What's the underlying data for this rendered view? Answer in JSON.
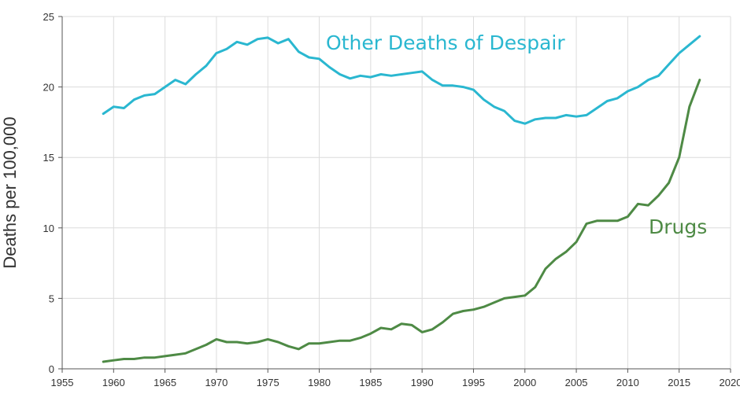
{
  "chart_data": {
    "type": "line",
    "title": "",
    "xlabel": "",
    "ylabel": "Deaths per 100,000",
    "xlim": [
      1955,
      2020
    ],
    "ylim": [
      0,
      25
    ],
    "x_ticks": [
      "1955",
      "1960",
      "1965",
      "1970",
      "1975",
      "1980",
      "1985",
      "1990",
      "1995",
      "2000",
      "2005",
      "2010",
      "2015",
      "2020"
    ],
    "y_ticks": [
      "0",
      "5",
      "10",
      "15",
      "20",
      "25"
    ],
    "grid": true,
    "x": [
      1959,
      1960,
      1961,
      1962,
      1963,
      1964,
      1965,
      1966,
      1967,
      1968,
      1969,
      1970,
      1971,
      1972,
      1973,
      1974,
      1975,
      1976,
      1977,
      1978,
      1979,
      1980,
      1981,
      1982,
      1983,
      1984,
      1985,
      1986,
      1987,
      1988,
      1989,
      1990,
      1991,
      1992,
      1993,
      1994,
      1995,
      1996,
      1997,
      1998,
      1999,
      2000,
      2001,
      2002,
      2003,
      2004,
      2005,
      2006,
      2007,
      2008,
      2009,
      2010,
      2011,
      2012,
      2013,
      2014,
      2015,
      2016,
      2017
    ],
    "series": [
      {
        "name": "Other Deaths of Despair",
        "color": "#2ab7d0",
        "values": [
          18.1,
          18.6,
          18.5,
          19.1,
          19.4,
          19.5,
          20.0,
          20.5,
          20.2,
          20.9,
          21.5,
          22.4,
          22.7,
          23.2,
          23.0,
          23.4,
          23.5,
          23.1,
          23.4,
          22.5,
          22.1,
          22.0,
          21.4,
          20.9,
          20.6,
          20.8,
          20.7,
          20.9,
          20.8,
          20.9,
          21.0,
          21.1,
          20.5,
          20.1,
          20.1,
          20.0,
          19.8,
          19.1,
          18.6,
          18.3,
          17.6,
          17.4,
          17.7,
          17.8,
          17.8,
          18.0,
          17.9,
          18.0,
          18.5,
          19.0,
          19.2,
          19.7,
          20.0,
          20.5,
          20.8,
          21.6,
          22.4,
          23.0,
          23.6
        ]
      },
      {
        "name": "Drugs",
        "color": "#4e8a45",
        "values": [
          0.5,
          0.6,
          0.7,
          0.7,
          0.8,
          0.8,
          0.9,
          1.0,
          1.1,
          1.4,
          1.7,
          2.1,
          1.9,
          1.9,
          1.8,
          1.9,
          2.1,
          1.9,
          1.6,
          1.4,
          1.8,
          1.8,
          1.9,
          2.0,
          2.0,
          2.2,
          2.5,
          2.9,
          2.8,
          3.2,
          3.1,
          2.6,
          2.8,
          3.3,
          3.9,
          4.1,
          4.2,
          4.4,
          4.7,
          5.0,
          5.1,
          5.2,
          5.8,
          7.1,
          7.8,
          8.3,
          9.0,
          10.3,
          10.5,
          10.5,
          10.5,
          10.8,
          11.7,
          11.6,
          12.3,
          13.2,
          15.0,
          18.6,
          20.5
        ]
      }
    ]
  }
}
